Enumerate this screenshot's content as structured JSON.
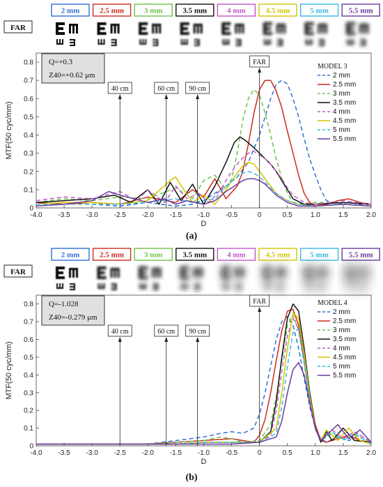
{
  "figure": {
    "panels": [
      {
        "panel_label": "(a)",
        "side_label": "FAR",
        "aperture_labels": [
          "2 mm",
          "2.5 mm",
          "3 mm",
          "3.5 mm",
          "4 mm",
          "4.5 mm",
          "5 mm",
          "5.5 mm"
        ],
        "aperture_colors": [
          "#2e6fd6",
          "#cc2a1f",
          "#6cc24a",
          "#111111",
          "#c058c8",
          "#d4c400",
          "#38b8e0",
          "#6a3aa0"
        ],
        "info_lines": [
          "Q=+0.3",
          "Z40=+0.62 μm"
        ],
        "distance_labels": [
          "40 cm",
          "60 cm",
          "90 cm",
          "FAR"
        ]
      },
      {
        "panel_label": "(b)",
        "side_label": "FAR",
        "aperture_labels": [
          "2 mm",
          "2.5 mm",
          "3 mm",
          "3.5 mm",
          "4 mm",
          "4.5 mm",
          "5 mm",
          "5.5 mm"
        ],
        "aperture_colors": [
          "#2e6fd6",
          "#cc2a1f",
          "#6cc24a",
          "#111111",
          "#c058c8",
          "#d4c400",
          "#38b8e0",
          "#6a3aa0"
        ],
        "info_lines": [
          "Q=-1.028",
          "Z40=-0.279 μm"
        ],
        "distance_labels": [
          "40 cm",
          "60 cm",
          "90 cm",
          "FAR"
        ]
      }
    ]
  },
  "chart_data": [
    {
      "type": "line",
      "title": "",
      "xlabel": "D",
      "ylabel": "MTF(50 cyc/mm)",
      "xlim": [
        -4.0,
        2.0
      ],
      "ylim": [
        0,
        0.85
      ],
      "xticks": [
        "-4.0",
        "-3.5",
        "-3.0",
        "-2.5",
        "-2.0",
        "-1.5",
        "-1.0",
        "-0.5",
        "0",
        "0.5",
        "1.0",
        "1.5",
        "2.0"
      ],
      "yticks": [
        "0",
        "0.1",
        "0.2",
        "0.3",
        "0.4",
        "0.5",
        "0.6",
        "0.7",
        "0.8"
      ],
      "legend_title": "MODEL 3",
      "legend_position": "top-right",
      "grid": false,
      "markers": [
        {
          "x": -2.5,
          "label": "40 cm"
        },
        {
          "x": -1.67,
          "label": "60 cm"
        },
        {
          "x": -1.11,
          "label": "90 cm"
        },
        {
          "x": 0.0,
          "label": "FAR"
        }
      ],
      "series": [
        {
          "name": "2 mm",
          "color": "#2e6fd6",
          "dash": "6,4",
          "x": [
            -4.0,
            -3.5,
            -3.0,
            -2.5,
            -2.0,
            -1.5,
            -1.2,
            -1.0,
            -0.8,
            -0.6,
            -0.4,
            -0.2,
            0.0,
            0.1,
            0.2,
            0.3,
            0.4,
            0.5,
            0.6,
            0.7,
            0.8,
            0.9,
            1.0,
            1.1,
            1.2,
            1.4,
            1.6,
            1.8,
            2.0
          ],
          "y": [
            0.02,
            0.02,
            0.02,
            0.01,
            0.03,
            0.01,
            0.02,
            0.04,
            0.08,
            0.12,
            0.17,
            0.25,
            0.4,
            0.5,
            0.6,
            0.68,
            0.7,
            0.68,
            0.6,
            0.5,
            0.38,
            0.27,
            0.18,
            0.1,
            0.04,
            0.02,
            0.03,
            0.02,
            0.02
          ]
        },
        {
          "name": "2.5 mm",
          "color": "#cc2a1f",
          "dash": "",
          "x": [
            -4.0,
            -3.5,
            -3.0,
            -2.5,
            -2.0,
            -1.5,
            -1.2,
            -1.0,
            -0.8,
            -0.6,
            -0.4,
            -0.3,
            -0.2,
            -0.1,
            0.0,
            0.1,
            0.2,
            0.3,
            0.4,
            0.5,
            0.6,
            0.7,
            0.8,
            0.9,
            1.0,
            1.2,
            1.4,
            1.6,
            1.8,
            2.0
          ],
          "y": [
            0.03,
            0.02,
            0.03,
            0.02,
            0.06,
            0.03,
            0.1,
            0.06,
            0.16,
            0.05,
            0.12,
            0.2,
            0.35,
            0.52,
            0.65,
            0.7,
            0.7,
            0.64,
            0.55,
            0.42,
            0.3,
            0.18,
            0.08,
            0.03,
            0.01,
            0.02,
            0.04,
            0.05,
            0.03,
            0.02
          ]
        },
        {
          "name": "3 mm",
          "color": "#6cc24a",
          "dash": "6,4",
          "x": [
            -4.0,
            -3.5,
            -3.0,
            -2.5,
            -2.0,
            -1.5,
            -1.2,
            -1.0,
            -0.8,
            -0.6,
            -0.5,
            -0.4,
            -0.3,
            -0.2,
            -0.1,
            0.0,
            0.1,
            0.2,
            0.3,
            0.4,
            0.5,
            0.6,
            0.8,
            1.0,
            1.2,
            1.5,
            2.0
          ],
          "y": [
            0.03,
            0.05,
            0.04,
            0.06,
            0.05,
            0.11,
            0.05,
            0.15,
            0.18,
            0.1,
            0.16,
            0.3,
            0.48,
            0.6,
            0.65,
            0.62,
            0.52,
            0.4,
            0.27,
            0.16,
            0.08,
            0.03,
            0.02,
            0.03,
            0.03,
            0.03,
            0.02
          ]
        },
        {
          "name": "3.5 mm",
          "color": "#111111",
          "dash": "",
          "x": [
            -4.0,
            -3.5,
            -3.0,
            -2.6,
            -2.3,
            -2.0,
            -1.8,
            -1.6,
            -1.4,
            -1.2,
            -1.0,
            -0.8,
            -0.6,
            -0.45,
            -0.35,
            -0.25,
            -0.1,
            0.0,
            0.1,
            0.2,
            0.3,
            0.4,
            0.5,
            0.6,
            0.8,
            1.0,
            1.5,
            2.0
          ],
          "y": [
            0.03,
            0.04,
            0.05,
            0.07,
            0.03,
            0.1,
            0.02,
            0.14,
            0.04,
            0.13,
            0.02,
            0.12,
            0.25,
            0.36,
            0.39,
            0.37,
            0.33,
            0.3,
            0.27,
            0.24,
            0.2,
            0.15,
            0.1,
            0.05,
            0.02,
            0.02,
            0.03,
            0.02
          ]
        },
        {
          "name": "4 mm",
          "color": "#c058c8",
          "dash": "6,4",
          "x": [
            -4.0,
            -3.5,
            -3.0,
            -2.5,
            -2.2,
            -2.0,
            -1.7,
            -1.5,
            -1.3,
            -1.1,
            -0.9,
            -0.7,
            -0.5,
            -0.35,
            -0.2,
            -0.1,
            0.0,
            0.1,
            0.2,
            0.3,
            0.4,
            0.5,
            0.6,
            0.8,
            1.0,
            1.5,
            2.0
          ],
          "y": [
            0.04,
            0.06,
            0.05,
            0.09,
            0.04,
            0.1,
            0.03,
            0.12,
            0.05,
            0.08,
            0.03,
            0.1,
            0.2,
            0.26,
            0.3,
            0.31,
            0.29,
            0.27,
            0.24,
            0.2,
            0.16,
            0.11,
            0.07,
            0.03,
            0.02,
            0.04,
            0.02
          ]
        },
        {
          "name": "4.5 mm",
          "color": "#d4c400",
          "dash": "",
          "x": [
            -4.0,
            -3.5,
            -3.0,
            -2.5,
            -2.0,
            -1.6,
            -1.5,
            -1.4,
            -1.2,
            -1.0,
            -0.8,
            -0.6,
            -0.45,
            -0.3,
            -0.2,
            -0.1,
            0.0,
            0.1,
            0.2,
            0.3,
            0.5,
            0.7,
            1.0,
            1.5,
            2.0
          ],
          "y": [
            0.02,
            0.03,
            0.03,
            0.02,
            0.04,
            0.15,
            0.17,
            0.12,
            0.03,
            0.07,
            0.02,
            0.1,
            0.17,
            0.23,
            0.25,
            0.24,
            0.2,
            0.16,
            0.12,
            0.08,
            0.04,
            0.02,
            0.01,
            0.02,
            0.01
          ]
        },
        {
          "name": "5 mm",
          "color": "#38b8e0",
          "dash": "6,4",
          "x": [
            -4.0,
            -3.5,
            -3.0,
            -2.5,
            -2.0,
            -1.5,
            -1.2,
            -1.0,
            -0.8,
            -0.6,
            -0.4,
            -0.3,
            -0.2,
            -0.1,
            0.0,
            0.1,
            0.2,
            0.3,
            0.5,
            0.7,
            1.0,
            1.5,
            2.0
          ],
          "y": [
            0.02,
            0.02,
            0.02,
            0.02,
            0.03,
            0.05,
            0.03,
            0.04,
            0.05,
            0.12,
            0.17,
            0.19,
            0.2,
            0.19,
            0.17,
            0.14,
            0.11,
            0.08,
            0.04,
            0.02,
            0.01,
            0.02,
            0.01
          ]
        },
        {
          "name": "5.5 mm",
          "color": "#6a3aa0",
          "dash": "",
          "x": [
            -4.0,
            -3.5,
            -3.0,
            -2.7,
            -2.5,
            -2.0,
            -1.7,
            -1.5,
            -1.3,
            -1.0,
            -0.8,
            -0.6,
            -0.4,
            -0.3,
            -0.2,
            -0.1,
            0.0,
            0.1,
            0.2,
            0.3,
            0.5,
            0.7,
            1.0,
            1.5,
            2.0
          ],
          "y": [
            0.01,
            0.02,
            0.04,
            0.09,
            0.07,
            0.03,
            0.05,
            0.02,
            0.04,
            0.02,
            0.04,
            0.09,
            0.13,
            0.15,
            0.16,
            0.16,
            0.15,
            0.13,
            0.1,
            0.07,
            0.03,
            0.01,
            0.01,
            0.02,
            0.01
          ]
        }
      ]
    },
    {
      "type": "line",
      "title": "",
      "xlabel": "D",
      "ylabel": "MTF(50 cyc/mm)",
      "xlim": [
        -4.0,
        2.0
      ],
      "ylim": [
        0,
        0.85
      ],
      "xticks": [
        "-4.0",
        "-3.5",
        "-3.0",
        "-2.5",
        "-2.0",
        "-1.5",
        "-1.0",
        "-0.5",
        "0",
        "0.5",
        "1.0",
        "1.5",
        "2.0"
      ],
      "yticks": [
        "0",
        "0.1",
        "0.2",
        "0.3",
        "0.4",
        "0.5",
        "0.6",
        "0.7",
        "0.8"
      ],
      "legend_title": "MODEL 4",
      "legend_position": "top-right",
      "grid": false,
      "markers": [
        {
          "x": -2.5,
          "label": "40 cm"
        },
        {
          "x": -1.67,
          "label": "60 cm"
        },
        {
          "x": -1.11,
          "label": "90 cm"
        },
        {
          "x": 0.0,
          "label": "FAR"
        }
      ],
      "series": [
        {
          "name": "2 mm",
          "color": "#2e6fd6",
          "dash": "6,4",
          "x": [
            -4.0,
            -3.0,
            -2.0,
            -1.5,
            -1.0,
            -0.7,
            -0.5,
            -0.3,
            -0.1,
            0.0,
            0.1,
            0.2,
            0.3,
            0.4,
            0.5,
            0.6,
            0.7,
            0.8,
            0.9,
            1.0,
            1.1,
            1.2,
            1.4,
            1.6,
            1.8,
            2.0
          ],
          "y": [
            0.01,
            0.01,
            0.01,
            0.03,
            0.05,
            0.07,
            0.08,
            0.07,
            0.1,
            0.18,
            0.3,
            0.45,
            0.6,
            0.7,
            0.73,
            0.68,
            0.55,
            0.38,
            0.22,
            0.1,
            0.04,
            0.02,
            0.05,
            0.03,
            0.06,
            0.02
          ]
        },
        {
          "name": "2.5 mm",
          "color": "#cc2a1f",
          "dash": "",
          "x": [
            -4.0,
            -3.0,
            -2.0,
            -1.5,
            -1.0,
            -0.5,
            -0.3,
            -0.1,
            0.0,
            0.1,
            0.2,
            0.3,
            0.4,
            0.5,
            0.6,
            0.7,
            0.8,
            0.9,
            1.0,
            1.1,
            1.2,
            1.4,
            1.6,
            1.8,
            2.0
          ],
          "y": [
            0.01,
            0.01,
            0.01,
            0.02,
            0.03,
            0.04,
            0.03,
            0.02,
            0.06,
            0.15,
            0.3,
            0.48,
            0.65,
            0.76,
            0.77,
            0.68,
            0.5,
            0.3,
            0.12,
            0.03,
            0.02,
            0.04,
            0.06,
            0.03,
            0.02
          ]
        },
        {
          "name": "3 mm",
          "color": "#6cc24a",
          "dash": "6,4",
          "x": [
            -4.0,
            -3.0,
            -2.0,
            -1.5,
            -1.0,
            -0.7,
            -0.5,
            -0.3,
            0.0,
            0.2,
            0.3,
            0.4,
            0.5,
            0.6,
            0.7,
            0.8,
            0.9,
            1.0,
            1.1,
            1.3,
            1.5,
            1.7,
            2.0
          ],
          "y": [
            0.01,
            0.01,
            0.01,
            0.02,
            0.03,
            0.05,
            0.04,
            0.02,
            0.03,
            0.12,
            0.28,
            0.48,
            0.68,
            0.74,
            0.65,
            0.46,
            0.25,
            0.1,
            0.03,
            0.07,
            0.04,
            0.06,
            0.02
          ]
        },
        {
          "name": "3.5 mm",
          "color": "#111111",
          "dash": "",
          "x": [
            -4.0,
            -3.0,
            -2.0,
            -1.5,
            -1.0,
            -0.5,
            0.0,
            0.2,
            0.3,
            0.4,
            0.5,
            0.6,
            0.7,
            0.8,
            0.9,
            1.0,
            1.1,
            1.2,
            1.3,
            1.5,
            1.7,
            2.0
          ],
          "y": [
            0.01,
            0.01,
            0.01,
            0.01,
            0.02,
            0.02,
            0.02,
            0.08,
            0.25,
            0.5,
            0.72,
            0.8,
            0.76,
            0.55,
            0.3,
            0.1,
            0.02,
            0.08,
            0.03,
            0.1,
            0.03,
            0.02
          ]
        },
        {
          "name": "4 mm",
          "color": "#c058c8",
          "dash": "6,4",
          "x": [
            -4.0,
            -3.0,
            -2.0,
            -1.5,
            -1.0,
            -0.5,
            0.0,
            0.2,
            0.3,
            0.4,
            0.5,
            0.6,
            0.7,
            0.8,
            0.9,
            1.0,
            1.1,
            1.3,
            1.5,
            1.7,
            2.0
          ],
          "y": [
            0.01,
            0.01,
            0.01,
            0.01,
            0.02,
            0.02,
            0.02,
            0.06,
            0.2,
            0.42,
            0.62,
            0.72,
            0.66,
            0.48,
            0.26,
            0.1,
            0.04,
            0.09,
            0.04,
            0.08,
            0.02
          ]
        },
        {
          "name": "4.5 mm",
          "color": "#d4c400",
          "dash": "",
          "x": [
            -4.0,
            -3.0,
            -2.0,
            -1.5,
            -1.0,
            -0.5,
            0.0,
            0.3,
            0.4,
            0.5,
            0.6,
            0.7,
            0.8,
            0.9,
            1.0,
            1.1,
            1.2,
            1.4,
            1.6,
            1.8,
            2.0
          ],
          "y": [
            0.01,
            0.01,
            0.01,
            0.01,
            0.02,
            0.02,
            0.02,
            0.1,
            0.3,
            0.55,
            0.75,
            0.72,
            0.52,
            0.28,
            0.1,
            0.03,
            0.09,
            0.03,
            0.1,
            0.03,
            0.01
          ]
        },
        {
          "name": "5 mm",
          "color": "#38b8e0",
          "dash": "6,4",
          "x": [
            -4.0,
            -3.0,
            -2.0,
            -1.5,
            -1.0,
            -0.5,
            0.0,
            0.3,
            0.4,
            0.5,
            0.6,
            0.7,
            0.8,
            0.9,
            1.0,
            1.1,
            1.3,
            1.5,
            1.7,
            2.0
          ],
          "y": [
            0.01,
            0.01,
            0.01,
            0.01,
            0.02,
            0.02,
            0.02,
            0.07,
            0.22,
            0.45,
            0.64,
            0.66,
            0.48,
            0.26,
            0.09,
            0.03,
            0.08,
            0.03,
            0.07,
            0.01
          ]
        },
        {
          "name": "5.5 mm",
          "color": "#6a3aa0",
          "dash": "",
          "x": [
            -4.0,
            -3.0,
            -2.0,
            -1.5,
            -1.0,
            -0.5,
            0.0,
            0.3,
            0.4,
            0.5,
            0.6,
            0.7,
            0.8,
            0.9,
            1.0,
            1.1,
            1.2,
            1.4,
            1.6,
            1.8,
            2.0
          ],
          "y": [
            0.01,
            0.01,
            0.01,
            0.01,
            0.01,
            0.01,
            0.02,
            0.05,
            0.14,
            0.3,
            0.43,
            0.47,
            0.4,
            0.24,
            0.1,
            0.03,
            0.06,
            0.12,
            0.04,
            0.09,
            0.02
          ]
        }
      ]
    }
  ]
}
